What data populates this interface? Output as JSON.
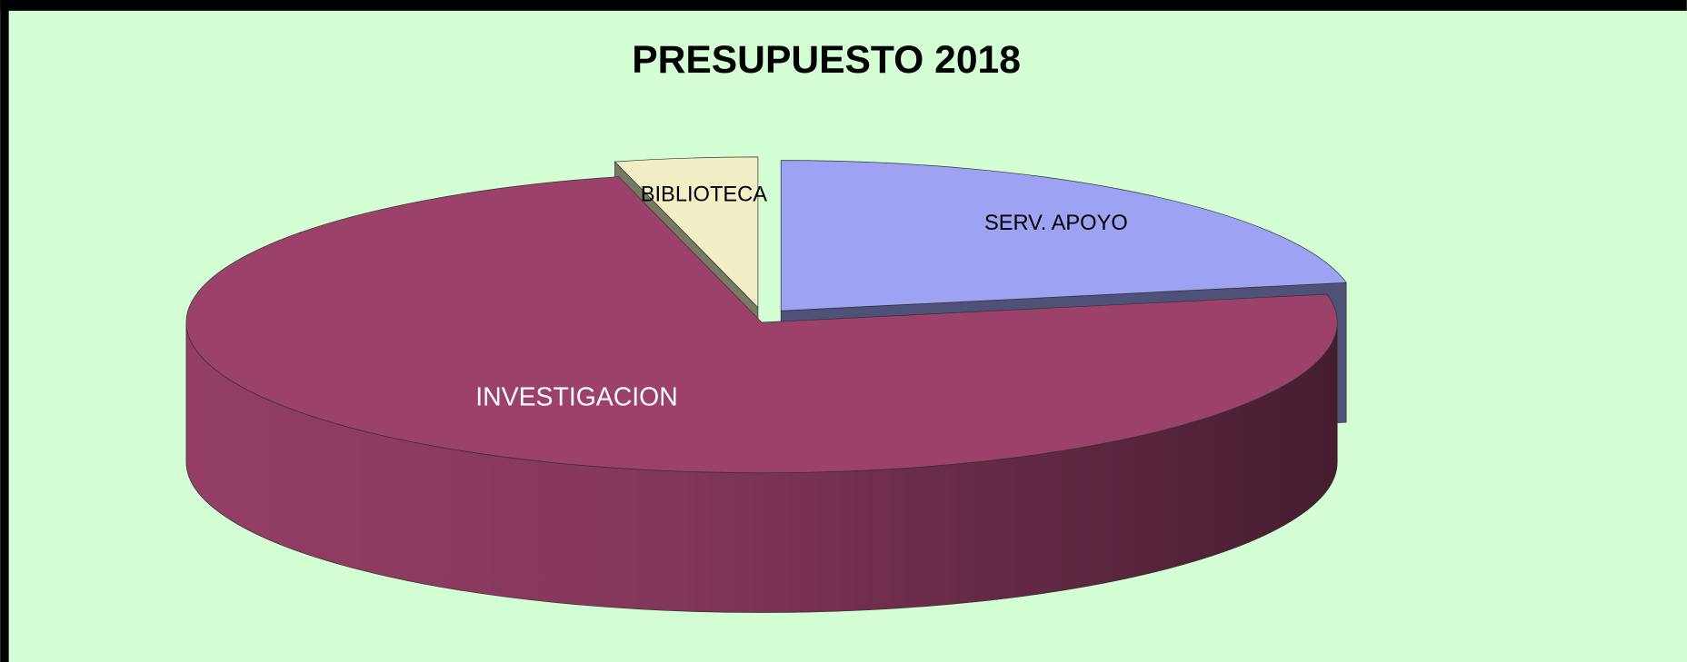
{
  "chart_data": {
    "type": "pie3d",
    "title": "PRESUPUESTO 2018",
    "categories": [
      "SERV. APOYO",
      "INVESTIGACION",
      "BIBLIOTECA"
    ],
    "values": [
      22,
      74,
      4
    ],
    "colors": [
      "#9ea2f2",
      "#9c416a",
      "#f2efc6"
    ]
  }
}
